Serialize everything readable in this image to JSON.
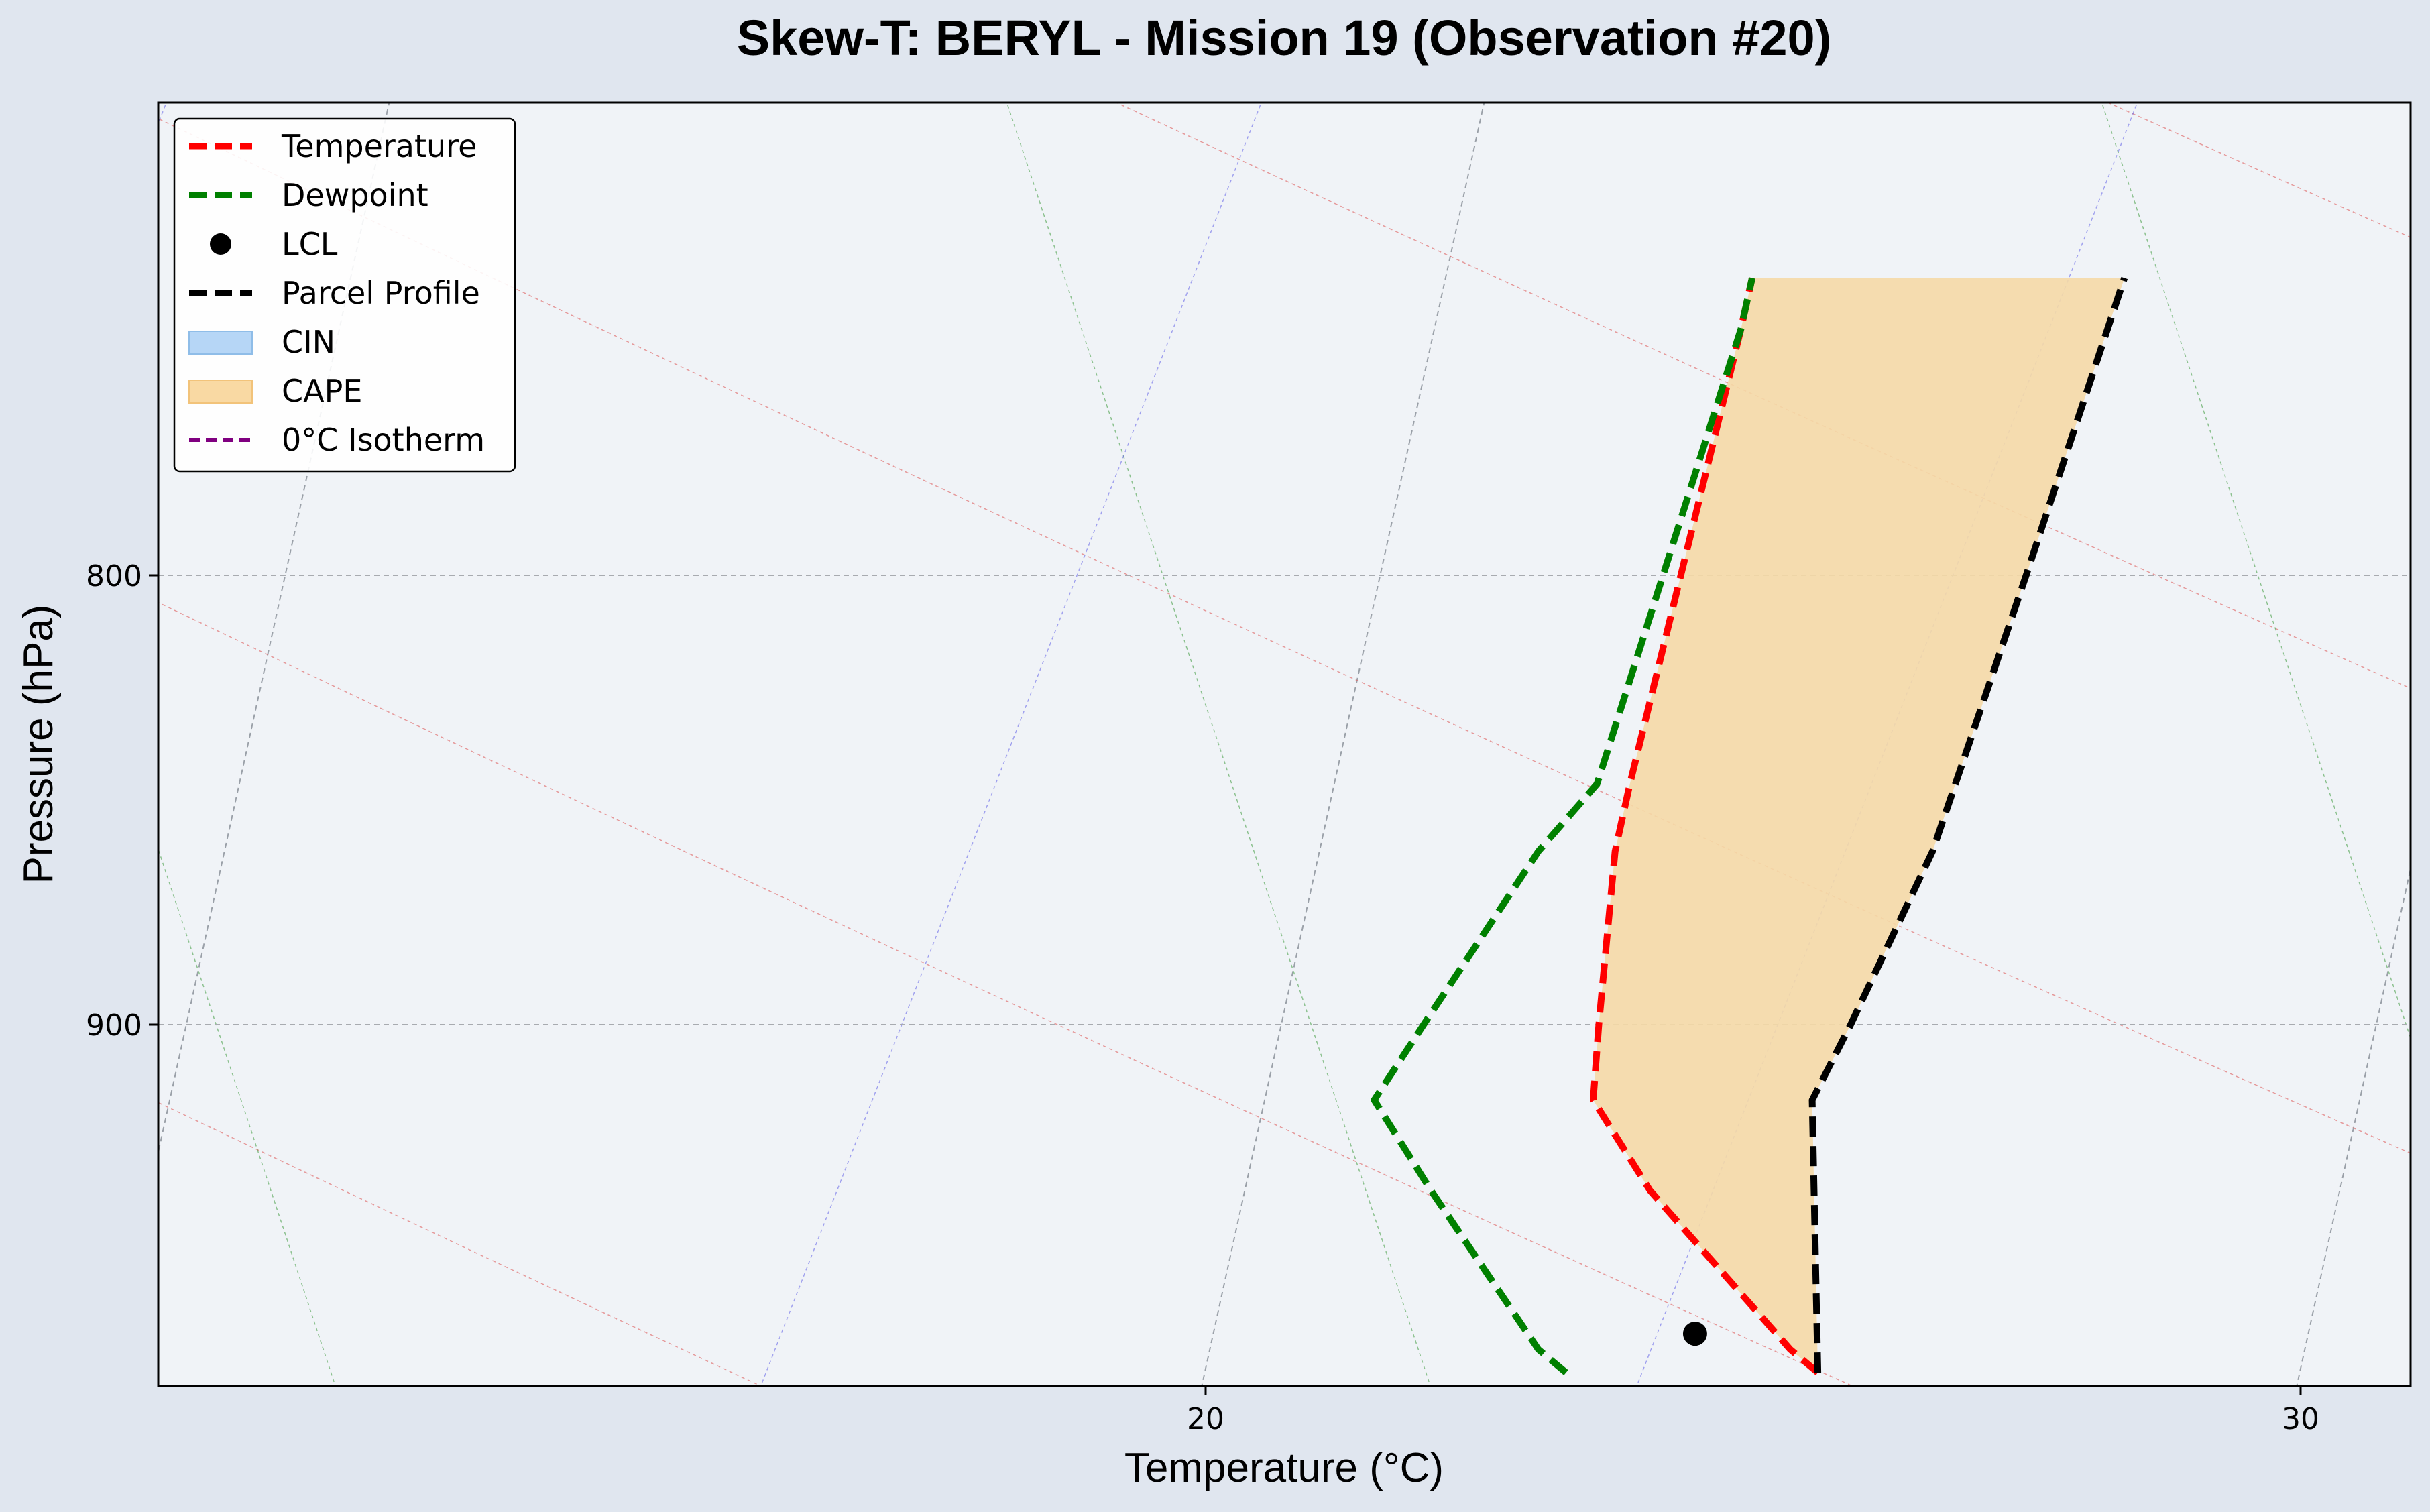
{
  "chart_data": {
    "type": "line",
    "title": "Skew-T: BERYL - Mission 19 (Observation #20)",
    "xlabel": "Temperature (°C)",
    "ylabel": "Pressure (hPa)",
    "x_ticks": [
      20,
      30
    ],
    "y_ticks": [
      800,
      900
    ],
    "ylim_hpa": [
      995,
      695
    ],
    "log_pressure_axis": true,
    "grid": true,
    "legend_position": "upper-left",
    "series": [
      {
        "name": "Temperature",
        "color": "#ff0000",
        "style": "dashed",
        "points": [
          [
            986,
            25.6
          ],
          [
            980,
            25.3
          ],
          [
            940,
            23.7
          ],
          [
            918,
            23.0
          ],
          [
            900,
            22.9
          ],
          [
            860,
            22.7
          ],
          [
            845,
            22.7
          ],
          [
            750,
            22.8
          ],
          [
            740,
            22.8
          ]
        ]
      },
      {
        "name": "Dewpoint",
        "color": "#008000",
        "style": "dashed",
        "points": [
          [
            986,
            23.3
          ],
          [
            980,
            23.0
          ],
          [
            940,
            21.7
          ],
          [
            918,
            21.0
          ],
          [
            900,
            21.3
          ],
          [
            860,
            22.0
          ],
          [
            845,
            22.4
          ],
          [
            750,
            22.8
          ],
          [
            740,
            22.8
          ]
        ]
      },
      {
        "name": "Parcel Profile",
        "color": "#000000",
        "style": "dashed",
        "points": [
          [
            986,
            25.6
          ],
          [
            918,
            25.0
          ],
          [
            900,
            25.2
          ],
          [
            860,
            25.6
          ],
          [
            800,
            25.9
          ],
          [
            740,
            26.2
          ]
        ]
      }
    ],
    "lcl": {
      "name": "LCL",
      "pressure": 976,
      "temperature": 24.4
    },
    "cape": {
      "name": "CAPE",
      "color": "#f5d9a6",
      "p_range": [
        986,
        740
      ]
    },
    "cin": {
      "name": "CIN",
      "color": "#b6d6f6"
    },
    "zero_isotherm": {
      "name": "0°C Isotherm",
      "color": "#800080",
      "style": "dashed"
    }
  }
}
